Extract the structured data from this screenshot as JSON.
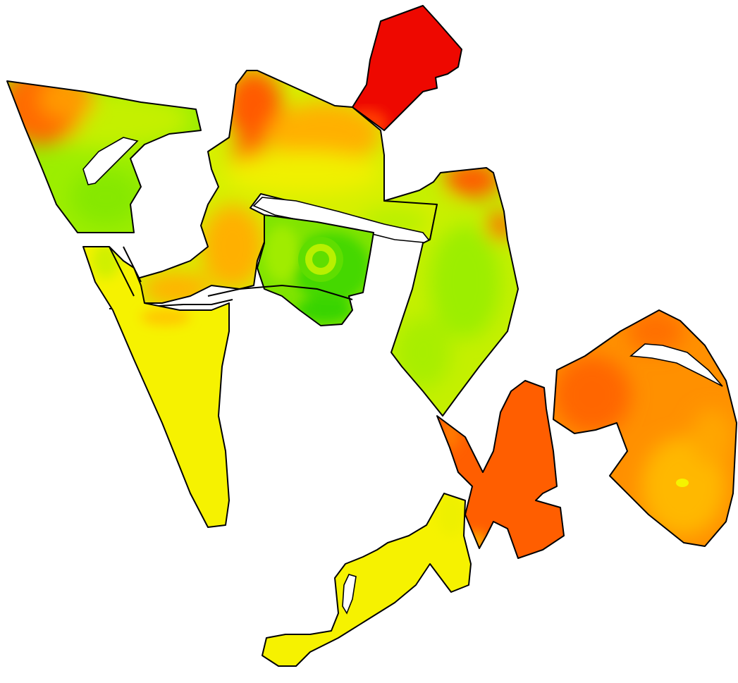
{
  "map": {
    "kind": "field-zone-heatmap",
    "legend": null,
    "background": "#ffffff",
    "palette": {
      "red": "#ee0a00",
      "red_orange": "#ff5a00",
      "orange": "#ff8e00",
      "amber": "#ffb400",
      "yellow": "#f5f300",
      "yellow_green": "#c8f000",
      "light_green": "#96ee00",
      "green": "#3ed800",
      "outline": "#000000"
    },
    "fields": [
      {
        "id": "northwest-field",
        "level": "light_green"
      },
      {
        "id": "central-north-field",
        "level": "amber"
      },
      {
        "id": "north-peak-field",
        "level": "red"
      },
      {
        "id": "central-east-field",
        "level": "yellow_green"
      },
      {
        "id": "central-pocket-field",
        "level": "green"
      },
      {
        "id": "west-wedge-field",
        "level": "yellow"
      },
      {
        "id": "southeast-field",
        "level": "orange"
      },
      {
        "id": "south-strip-field",
        "level": "red_orange"
      },
      {
        "id": "south-tail-field",
        "level": "yellow"
      }
    ]
  }
}
